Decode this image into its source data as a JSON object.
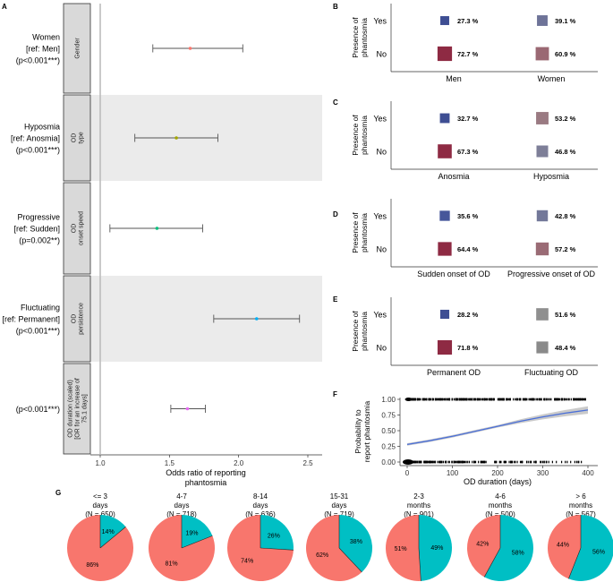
{
  "panel_labels": {
    "A": "A",
    "B": "B",
    "C": "C",
    "D": "D",
    "E": "E",
    "F": "F",
    "G": "G"
  },
  "chart_data": [
    {
      "panel": "A",
      "type": "scatter",
      "subtype": "forest-plot",
      "xlabel": "Odds ratio of reporting phantosmia",
      "x_ticks": [
        "1.0",
        "1.5",
        "2.0",
        "2.5"
      ],
      "xlim": [
        0.95,
        2.58
      ],
      "reference_line": 1.0,
      "rows": [
        {
          "strip": "Gender",
          "label_lines": [
            "Women",
            "[ref: Men]",
            "(p<0.001***)"
          ],
          "or": 1.65,
          "lo": 1.38,
          "hi": 2.03,
          "color": "#F8766D",
          "shaded": false
        },
        {
          "strip": "OD type",
          "label_lines": [
            "Hyposmia",
            "[ref: Anosmia]",
            "(p<0.001***)"
          ],
          "or": 1.55,
          "lo": 1.25,
          "hi": 1.85,
          "color": "#A3A500",
          "shaded": true
        },
        {
          "strip": "OD onset speed",
          "label_lines": [
            "Progressive",
            "[ref: Sudden]",
            "(p=0.002**)"
          ],
          "or": 1.41,
          "lo": 1.07,
          "hi": 1.74,
          "color": "#00BF7D",
          "shaded": false
        },
        {
          "strip": "OD persistence",
          "label_lines": [
            "Fluctuating",
            "[ref: Permanent]",
            "(p<0.001***)"
          ],
          "or": 2.13,
          "lo": 1.82,
          "hi": 2.44,
          "color": "#00B0F6",
          "shaded": true
        },
        {
          "strip": "OD duration (scaled) [OR for an increase of 75.1 days]",
          "label_lines": [
            "(p<0.001***)"
          ],
          "or": 1.63,
          "lo": 1.51,
          "hi": 1.76,
          "color": "#E76BF3",
          "shaded": false
        }
      ]
    },
    {
      "panel": "B",
      "type": "scatter",
      "subtype": "proportion-squares",
      "ylabel": "Presence of phantosmia",
      "rows": [
        "Yes",
        "No"
      ],
      "categories": [
        "Men",
        "Women"
      ],
      "values": [
        [
          27.3,
          72.7
        ],
        [
          39.1,
          60.9
        ]
      ],
      "labels": [
        [
          "27.3 %",
          "72.7 %"
        ],
        [
          "39.1 %",
          "60.9 %"
        ]
      ],
      "colors": [
        [
          "#3E4E93",
          "#8E2A43"
        ],
        [
          "#6E7398",
          "#9A6873"
        ]
      ]
    },
    {
      "panel": "C",
      "type": "scatter",
      "subtype": "proportion-squares",
      "ylabel": "Presence of phantosmia",
      "rows": [
        "Yes",
        "No"
      ],
      "categories": [
        "Anosmia",
        "Hyposmia"
      ],
      "values": [
        [
          32.7,
          67.3
        ],
        [
          53.2,
          46.8
        ]
      ],
      "labels": [
        [
          "32.7 %",
          "67.3 %"
        ],
        [
          "53.2 %",
          "46.8 %"
        ]
      ],
      "colors": [
        [
          "#3E4E93",
          "#8E2A43"
        ],
        [
          "#9A7A82",
          "#7E7F98"
        ]
      ]
    },
    {
      "panel": "D",
      "type": "scatter",
      "subtype": "proportion-squares",
      "ylabel": "Presence of phantosmia",
      "rows": [
        "Yes",
        "No"
      ],
      "categories": [
        "Sudden onset of OD",
        "Progressive onset of OD"
      ],
      "values": [
        [
          35.6,
          64.4
        ],
        [
          42.8,
          57.2
        ]
      ],
      "labels": [
        [
          "35.6 %",
          "64.4 %"
        ],
        [
          "42.8 %",
          "57.2 %"
        ]
      ],
      "colors": [
        [
          "#46569A",
          "#8E2A43"
        ],
        [
          "#737899",
          "#9A6B75"
        ]
      ]
    },
    {
      "panel": "E",
      "type": "scatter",
      "subtype": "proportion-squares",
      "ylabel": "Presence of phantosmia",
      "rows": [
        "Yes",
        "No"
      ],
      "categories": [
        "Permanent OD",
        "Fluctuating OD"
      ],
      "values": [
        [
          28.2,
          71.8
        ],
        [
          51.6,
          48.4
        ]
      ],
      "labels": [
        [
          "28.2 %",
          "71.8 %"
        ],
        [
          "51.6 %",
          "48.4 %"
        ]
      ],
      "colors": [
        [
          "#3E4E93",
          "#8E2A43"
        ],
        [
          "#8F8F8F",
          "#8A8A8A"
        ]
      ]
    },
    {
      "panel": "F",
      "type": "line",
      "subtype": "logistic-fit",
      "xlabel": "OD duration (days)",
      "ylabel": "Probability to report phantosmia",
      "x_ticks": [
        "0",
        "100",
        "200",
        "300",
        "400"
      ],
      "y_ticks": [
        "0.00",
        "0.25",
        "0.50",
        "0.75",
        "1.00"
      ],
      "xlim": [
        -15,
        420
      ],
      "ylim": [
        -0.04,
        1.04
      ],
      "fit": {
        "x": [
          0,
          50,
          100,
          150,
          200,
          250,
          300,
          350,
          400
        ],
        "y": [
          0.28,
          0.34,
          0.41,
          0.49,
          0.57,
          0.65,
          0.72,
          0.78,
          0.83
        ],
        "lo": [
          0.26,
          0.32,
          0.39,
          0.47,
          0.55,
          0.62,
          0.68,
          0.73,
          0.77
        ],
        "hi": [
          0.3,
          0.36,
          0.43,
          0.51,
          0.59,
          0.68,
          0.76,
          0.83,
          0.89
        ],
        "color": "#4A6FD8"
      }
    },
    {
      "panel": "G",
      "type": "pie",
      "groups": [
        {
          "title_lines": [
            "<= 3",
            "days",
            "(N = 650)"
          ],
          "yes": 14,
          "no": 86,
          "yes_label": "14%",
          "no_label": "86%"
        },
        {
          "title_lines": [
            "4-7",
            "days",
            "(N = 718)"
          ],
          "yes": 19,
          "no": 81,
          "yes_label": "19%",
          "no_label": "81%"
        },
        {
          "title_lines": [
            "8-14",
            "days",
            "(N = 636)"
          ],
          "yes": 26,
          "no": 74,
          "yes_label": "26%",
          "no_label": "74%"
        },
        {
          "title_lines": [
            "15-31",
            "days",
            "(N = 719)"
          ],
          "yes": 38,
          "no": 62,
          "yes_label": "38%",
          "no_label": "62%"
        },
        {
          "title_lines": [
            "2-3",
            "months",
            "(N = 901)"
          ],
          "yes": 49,
          "no": 51,
          "yes_label": "49%",
          "no_label": "51%"
        },
        {
          "title_lines": [
            "4-6",
            "months",
            "(N = 500)"
          ],
          "yes": 58,
          "no": 42,
          "yes_label": "58%",
          "no_label": "42%"
        },
        {
          "title_lines": [
            "> 6",
            "months",
            "(N = 567)"
          ],
          "yes": 56,
          "no": 44,
          "yes_label": "56%",
          "no_label": "44%"
        }
      ],
      "colors": {
        "yes": "#00BFC4",
        "no": "#F8766D"
      }
    }
  ]
}
